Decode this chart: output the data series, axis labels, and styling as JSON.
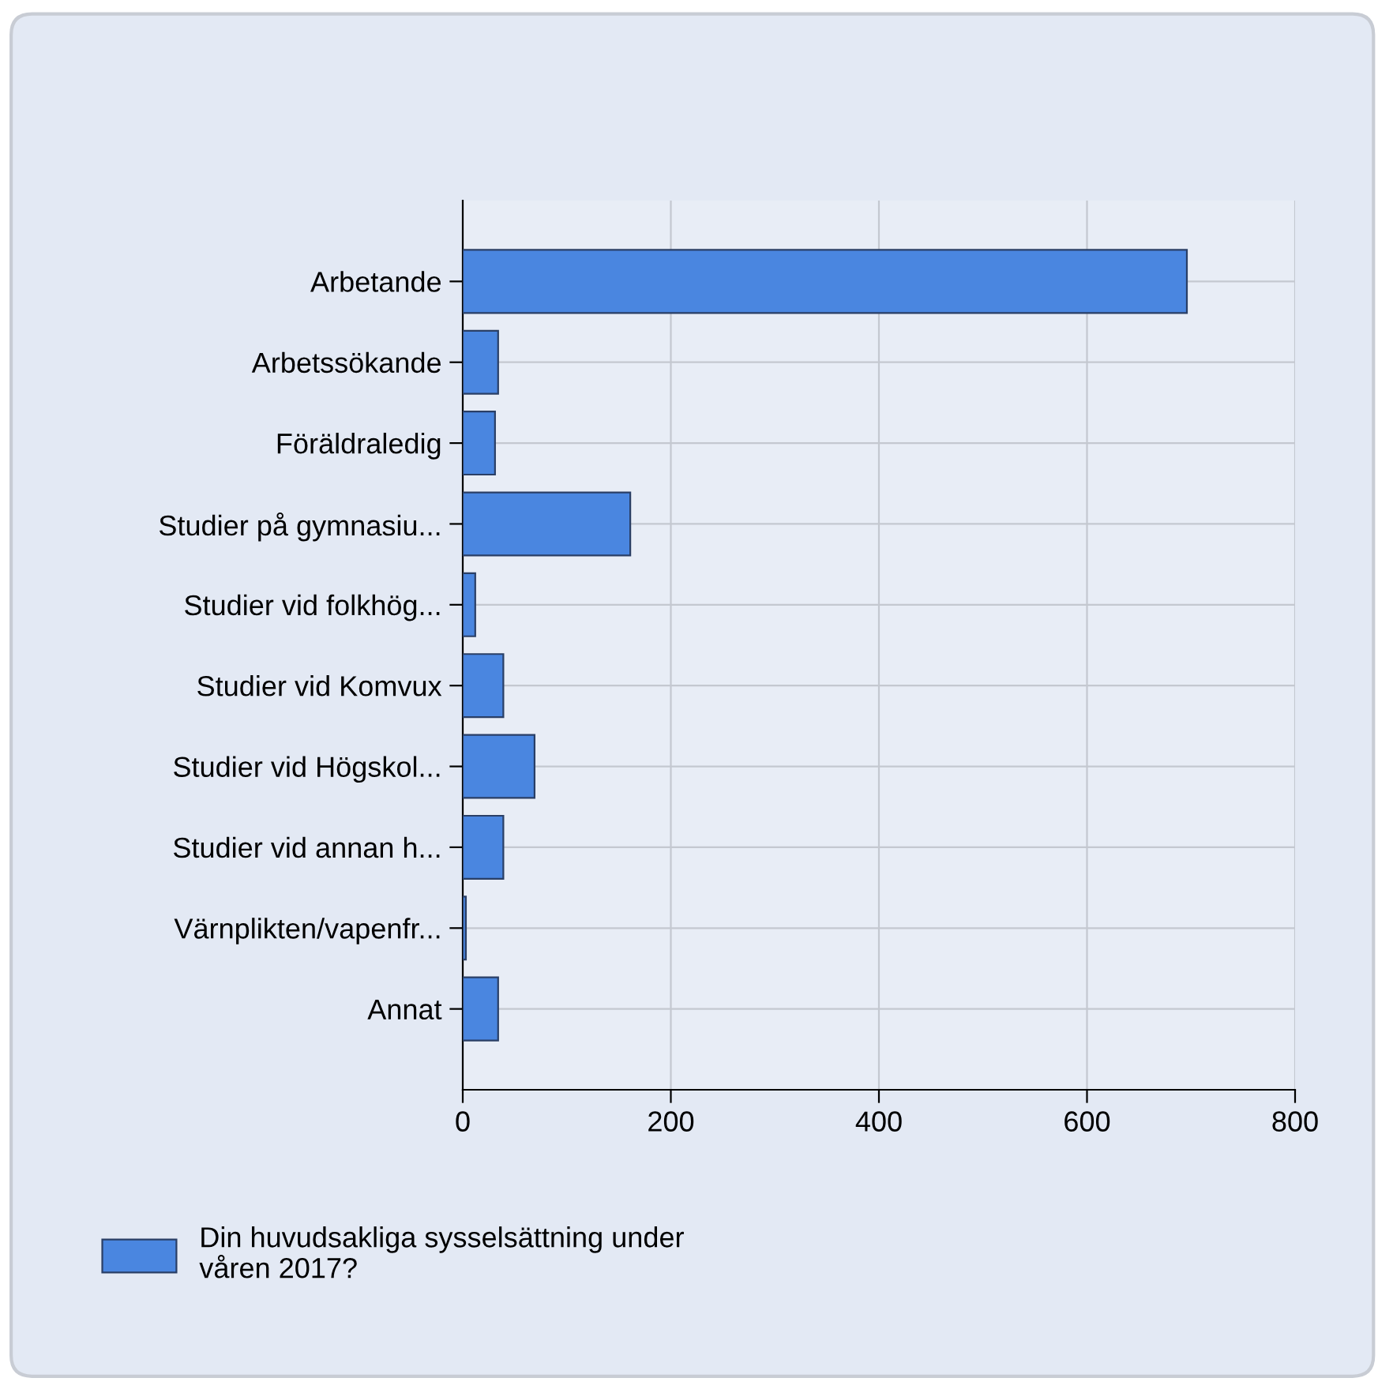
{
  "chart_data": {
    "type": "bar",
    "orientation": "horizontal",
    "categories": [
      "Arbetande",
      "Arbetssökande",
      "Föräldraledig",
      "Studier på gymnasiu...",
      "Studier vid folkhög...",
      "Studier vid Komvux",
      "Studier vid Högskol...",
      "Studier vid annan h...",
      "Värnplikten/vapenfr...",
      "Annat"
    ],
    "series": [
      {
        "name": "Din huvudsakliga sysselsättning under våren 2017?",
        "color": "#4a86e0",
        "values": [
          696,
          34,
          31,
          161,
          12,
          39,
          69,
          39,
          3,
          34
        ]
      }
    ],
    "xlim": [
      0,
      800
    ],
    "xticks": [
      0,
      200,
      400,
      600,
      800
    ],
    "grid": true,
    "legend": "bottom left"
  }
}
